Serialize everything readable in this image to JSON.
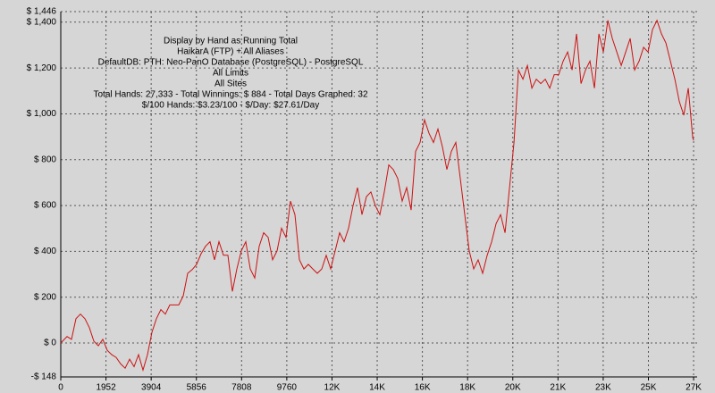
{
  "chart_data": {
    "type": "line",
    "annotations": [
      "Display by Hand as Running Total",
      "HaikarA (FTP) + All Aliases",
      "DefaultDB: PTH: Neo-PanO Database (PostgreSQL) - PostgreSQL",
      "All Limits",
      "All Sites",
      "Total Hands: 27,333 - Total Winnings: $ 884 - Total Days Graphed: 32",
      "$/100 Hands: $3.23/100 - $/Day: $27.61/Day"
    ],
    "x": [
      0,
      270,
      463,
      656,
      849,
      1042,
      1235,
      1428,
      1621,
      1814,
      2007,
      2200,
      2393,
      2586,
      2779,
      2972,
      3165,
      3358,
      3551,
      3744,
      3937,
      4130,
      4323,
      4516,
      4709,
      4902,
      5095,
      5288,
      5481,
      5674,
      5867,
      6060,
      6253,
      6446,
      6639,
      6832,
      7025,
      7218,
      7411,
      7604,
      7797,
      7990,
      8183,
      8376,
      8569,
      8762,
      8955,
      9148,
      9341,
      9534,
      9727,
      9920,
      10113,
      10306,
      10499,
      10692,
      10885,
      11078,
      11271,
      11464,
      11657,
      11850,
      12043,
      12236,
      12429,
      12622,
      12815,
      13008,
      13201,
      13394,
      13587,
      13780,
      13973,
      14166,
      14359,
      14552,
      14745,
      14938,
      15131,
      15324,
      15517,
      15710,
      15903,
      16096,
      16289,
      16482,
      16675,
      16868,
      17061,
      17254,
      17447,
      17640,
      17833,
      18026,
      18219,
      18412,
      18605,
      18798,
      18991,
      19184,
      19377,
      19570,
      19763,
      19956,
      20149,
      20342,
      20535,
      20728,
      20921,
      21114,
      21307,
      21500,
      21693,
      21886,
      22079,
      22272,
      22465,
      22658,
      22851,
      23044,
      23237,
      23430,
      23623,
      23816,
      24009,
      24202,
      24395,
      24588,
      24781,
      24974,
      25167,
      25360,
      25553,
      25746,
      25939,
      26132,
      26325,
      26518,
      26711,
      26904,
      27097,
      27290,
      27333
    ],
    "series": [
      {
        "name": "Running Total",
        "color": "#cc1111",
        "values": [
          0,
          28,
          16,
          106,
          126,
          106,
          67,
          8,
          -12,
          16,
          -32,
          -51,
          -63,
          -91,
          -110,
          -71,
          -103,
          -51,
          -118,
          -51,
          47,
          106,
          146,
          126,
          166,
          166,
          166,
          205,
          304,
          320,
          343,
          390,
          422,
          442,
          363,
          442,
          383,
          383,
          225,
          323,
          402,
          442,
          323,
          284,
          422,
          481,
          461,
          363,
          402,
          501,
          461,
          619,
          560,
          363,
          323,
          343,
          323,
          304,
          323,
          383,
          323,
          402,
          481,
          442,
          501,
          599,
          678,
          560,
          639,
          659,
          599,
          560,
          659,
          777,
          757,
          718,
          619,
          678,
          580,
          836,
          875,
          974,
          915,
          875,
          934,
          856,
          757,
          836,
          875,
          718,
          560,
          402,
          323,
          363,
          304,
          383,
          442,
          521,
          560,
          481,
          678,
          875,
          1191,
          1151,
          1211,
          1112,
          1151,
          1132,
          1151,
          1112,
          1171,
          1171,
          1230,
          1270,
          1191,
          1349,
          1132,
          1191,
          1230,
          1112,
          1349,
          1270,
          1408,
          1329,
          1270,
          1211,
          1270,
          1329,
          1191,
          1230,
          1290,
          1270,
          1368,
          1408,
          1349,
          1309,
          1230,
          1151,
          1053,
          994,
          1112,
          895,
          884
        ]
      }
    ],
    "xlim": [
      0,
      27480
    ],
    "xticks": [
      0,
      1952,
      3904,
      5856,
      7808,
      9760,
      {
        "value": 11712,
        "label": "12K"
      },
      {
        "value": 13664,
        "label": "14K"
      },
      {
        "value": 15616,
        "label": "16K"
      },
      {
        "value": 17568,
        "label": "18K"
      },
      {
        "value": 19520,
        "label": "20K"
      },
      {
        "value": 21472,
        "label": "21K"
      },
      {
        "value": 23424,
        "label": "23K"
      },
      {
        "value": 25376,
        "label": "25K"
      },
      {
        "value": 27328,
        "label": "27K"
      }
    ],
    "ylim": [
      -148,
      1446
    ],
    "yticks": [
      {
        "value": -148,
        "label": "-$ 148"
      },
      {
        "value": 0,
        "label": "$ 0"
      },
      {
        "value": 200,
        "label": "$ 200"
      },
      {
        "value": 400,
        "label": "$ 400"
      },
      {
        "value": 600,
        "label": "$ 600"
      },
      {
        "value": 800,
        "label": "$ 800"
      },
      {
        "value": 1000,
        "label": "$ 1,000"
      },
      {
        "value": 1200,
        "label": "$ 1,200"
      },
      {
        "value": 1400,
        "label": "$ 1,400"
      },
      {
        "value": 1446,
        "label": "$ 1,446"
      }
    ],
    "grid": true
  }
}
